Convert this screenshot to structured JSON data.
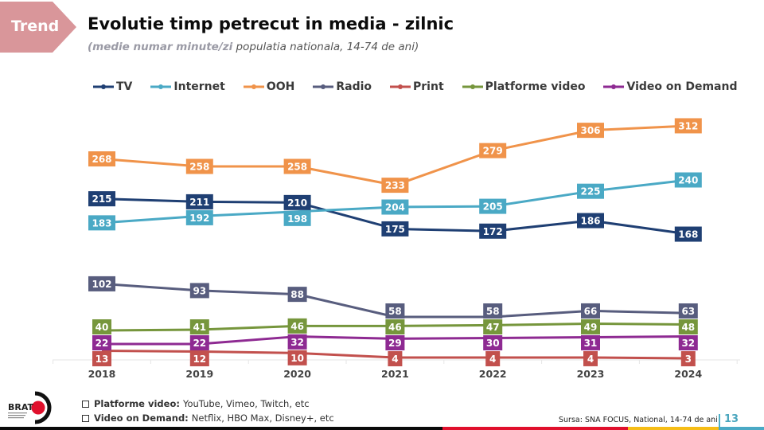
{
  "header": {
    "tag": "Trend",
    "tag_color": "#d9969a",
    "title": "Evolutie timp petrecut in media - zilnic",
    "subtitle_emphasis": "(medie numar minute/zi",
    "subtitle_rest": " populatia nationala, 14-74 de ani)"
  },
  "chart_data": {
    "type": "line",
    "title": "Evolutie timp petrecut in media - zilnic",
    "subtitle": "(medie numar minute/zi populatia nationala, 14-74 de ani)",
    "xlabel": "",
    "ylabel": "",
    "categories": [
      "2018",
      "2019",
      "2020",
      "2021",
      "2022",
      "2023",
      "2024"
    ],
    "ylim": [
      0,
      320
    ],
    "grid": false,
    "legend_position": "top",
    "series": [
      {
        "name": "TV",
        "color": "#1f3f73",
        "values": [
          215,
          211,
          210,
          175,
          172,
          186,
          168
        ]
      },
      {
        "name": "Internet",
        "color": "#4aa9c5",
        "values": [
          183,
          192,
          198,
          204,
          205,
          225,
          240
        ]
      },
      {
        "name": "OOH",
        "color": "#f0934a",
        "values": [
          268,
          258,
          258,
          233,
          279,
          306,
          312
        ]
      },
      {
        "name": "Radio",
        "color": "#585d7e",
        "values": [
          102,
          93,
          88,
          58,
          58,
          66,
          63
        ]
      },
      {
        "name": "Print",
        "color": "#c2504d",
        "values": [
          13,
          12,
          10,
          4,
          4,
          4,
          3
        ]
      },
      {
        "name": "Platforme video",
        "color": "#76963c",
        "values": [
          40,
          41,
          46,
          46,
          47,
          49,
          48
        ]
      },
      {
        "name": "Video on Demand",
        "color": "#8e2a92",
        "values": [
          22,
          22,
          32,
          29,
          30,
          31,
          32
        ]
      }
    ]
  },
  "notes": [
    {
      "label": "Platforme video:",
      "text": "YouTube, Vimeo, Twitch, etc"
    },
    {
      "label": "Video on Demand:",
      "text": "Netflix, HBO Max, Disney+, etc"
    }
  ],
  "logo": {
    "text": "BRAT"
  },
  "footer": {
    "source": "Sursa: SNA FOCUS, National, 14-74 de ani",
    "page_number": "13",
    "bar_colors": [
      "#0a0a0a",
      "#e0102c",
      "#f6bd16",
      "#4aa9c5"
    ]
  }
}
